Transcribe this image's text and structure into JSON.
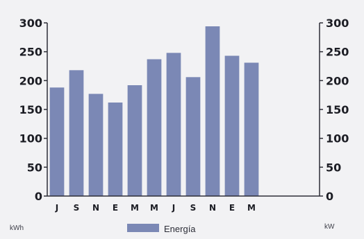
{
  "chart_data": {
    "type": "bar",
    "categories": [
      "J",
      "S",
      "N",
      "E",
      "M",
      "M",
      "J",
      "S",
      "N",
      "E",
      "M",
      "",
      "",
      ""
    ],
    "series": [
      {
        "name": "Energía",
        "values": [
          188,
          218,
          177,
          162,
          192,
          237,
          248,
          206,
          294,
          243,
          231,
          null,
          null,
          null
        ],
        "color": "#7b88b5"
      }
    ],
    "y_left": {
      "unit": "kWh",
      "ylim": [
        0,
        300
      ],
      "ticks": [
        "0",
        "50",
        "100",
        "150",
        "200",
        "250",
        "300"
      ]
    },
    "y_right": {
      "unit": "kW",
      "ylim": [
        0,
        300
      ],
      "ticks": [
        "0",
        "50",
        "100",
        "150",
        "200",
        "250",
        "300"
      ]
    },
    "grid": false,
    "legend": "bottom-center",
    "axis_color": "#2c2d36"
  }
}
